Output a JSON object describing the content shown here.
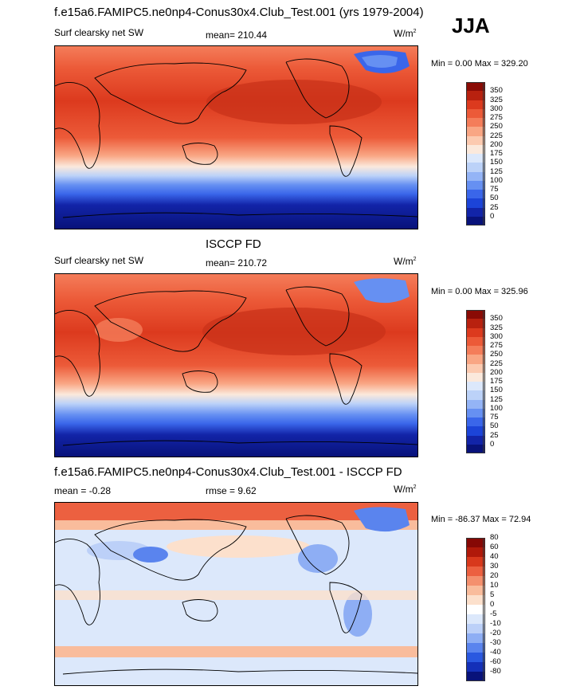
{
  "header": {
    "main_title": "f.e15a6.FAMIPC5.ne0np4-Conus30x4.Club_Test.001 (yrs 1979-2004)",
    "season": "JJA"
  },
  "panels": [
    {
      "id": "model",
      "section_title": "",
      "field_label": "Surf clearsky net SW",
      "stat_label": "mean= 210.44",
      "units": "W/m",
      "units_exp": "2",
      "minmax": "Min =   0.00 Max = 329.20",
      "colorbar": {
        "colors": [
          "#08127a",
          "#1224a8",
          "#1c44d8",
          "#3a66ea",
          "#6690f2",
          "#94b4f6",
          "#bcd2f8",
          "#dce8fb",
          "#fbe9dc",
          "#fccab0",
          "#f9a684",
          "#f47d5a",
          "#ec5a38",
          "#dc3a1e",
          "#b8210f",
          "#8a0b05"
        ],
        "ticks": [
          "350",
          "325",
          "300",
          "275",
          "250",
          "225",
          "200",
          "175",
          "150",
          "125",
          "100",
          "75",
          "50",
          "25",
          "0"
        ]
      }
    },
    {
      "id": "obs",
      "section_title": "ISCCP FD",
      "field_label": "Surf clearsky net SW",
      "stat_label": "mean= 210.72",
      "units": "W/m",
      "units_exp": "2",
      "minmax": "Min =   0.00 Max = 325.96",
      "colorbar": {
        "colors": [
          "#08127a",
          "#1224a8",
          "#1c44d8",
          "#3a66ea",
          "#6690f2",
          "#94b4f6",
          "#bcd2f8",
          "#dce8fb",
          "#fbe9dc",
          "#fccab0",
          "#f9a684",
          "#f47d5a",
          "#ec5a38",
          "#dc3a1e",
          "#b8210f",
          "#8a0b05"
        ],
        "ticks": [
          "350",
          "325",
          "300",
          "275",
          "250",
          "225",
          "200",
          "175",
          "150",
          "125",
          "100",
          "75",
          "50",
          "25",
          "0"
        ]
      }
    },
    {
      "id": "diff",
      "section_title": "f.e15a6.FAMIPC5.ne0np4-Conus30x4.Club_Test.001 - ISCCP FD",
      "field_label": "mean =  -0.28",
      "stat_label": "rmse =   9.62",
      "units": "W/m",
      "units_exp": "2",
      "minmax": "Min = -86.37 Max =  72.94",
      "colorbar": {
        "colors": [
          "#08127a",
          "#1430b8",
          "#2a58e0",
          "#5a84ee",
          "#8eaef4",
          "#bcd0f8",
          "#dce8fb",
          "#ffffff",
          "#fce0cc",
          "#f9bc9c",
          "#f4906e",
          "#ec6040",
          "#d8381c",
          "#b0190a",
          "#860805"
        ],
        "ticks": [
          "80",
          "60",
          "40",
          "30",
          "20",
          "10",
          "5",
          "0",
          "-5",
          "-10",
          "-20",
          "-30",
          "-40",
          "-60",
          "-80"
        ]
      }
    }
  ]
}
